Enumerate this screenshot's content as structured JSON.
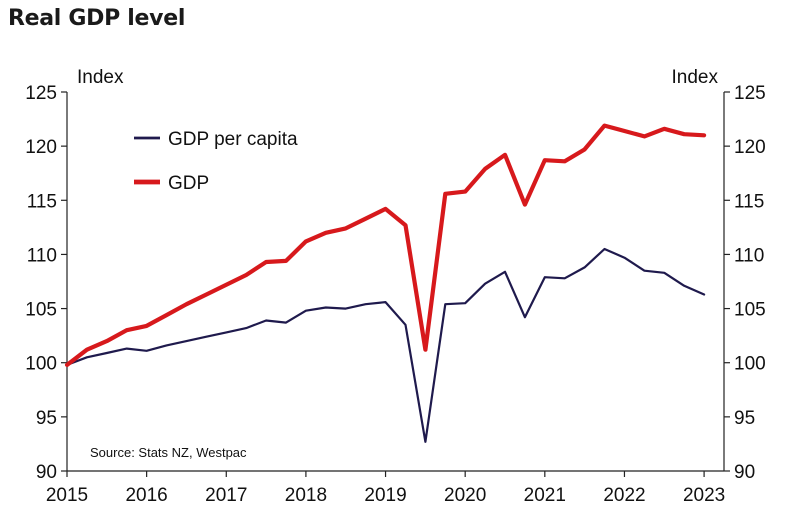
{
  "chart_data": {
    "type": "line",
    "title": "Real GDP level",
    "ylabel_left": "Index",
    "ylabel_right": "Index",
    "ylim": [
      90,
      125
    ],
    "yticks": [
      125,
      120,
      115,
      110,
      105,
      100,
      95,
      90
    ],
    "year_labels": [
      "2015",
      "2016",
      "2017",
      "2018",
      "2019",
      "2020",
      "2021",
      "2022",
      "2023"
    ],
    "xlim": [
      2015.0,
      2023.25
    ],
    "source": "Source: Stats NZ, Westpac",
    "grid": false,
    "legend_position": "top-left",
    "x": [
      2015.0,
      2015.25,
      2015.5,
      2015.75,
      2016.0,
      2016.25,
      2016.5,
      2016.75,
      2017.0,
      2017.25,
      2017.5,
      2017.75,
      2018.0,
      2018.25,
      2018.5,
      2018.75,
      2019.0,
      2019.25,
      2019.5,
      2019.75,
      2020.0,
      2020.25,
      2020.5,
      2020.75,
      2021.0,
      2021.25,
      2021.5,
      2021.75,
      2022.0,
      2022.25,
      2022.5,
      2022.75,
      2023.0
    ],
    "series": [
      {
        "name": "GDP per capita",
        "color": "#1f1a4d",
        "values": [
          99.8,
          100.5,
          100.9,
          101.3,
          101.1,
          101.6,
          102.0,
          102.4,
          102.8,
          103.2,
          103.9,
          103.7,
          104.8,
          105.1,
          105.0,
          105.4,
          105.6,
          103.5,
          92.7,
          105.4,
          105.5,
          107.3,
          108.4,
          104.2,
          107.9,
          107.8,
          108.8,
          110.5,
          109.7,
          108.5,
          108.3,
          107.1,
          106.3
        ]
      },
      {
        "name": "GDP",
        "color": "#d7191c",
        "values": [
          99.8,
          101.2,
          102.0,
          103.0,
          103.4,
          104.4,
          105.4,
          106.3,
          107.2,
          108.1,
          109.3,
          109.4,
          111.2,
          112.0,
          112.4,
          113.3,
          114.2,
          112.7,
          101.2,
          115.6,
          115.8,
          117.9,
          119.2,
          114.6,
          118.7,
          118.6,
          119.7,
          121.9,
          121.4,
          120.9,
          121.6,
          121.1,
          121.0
        ]
      }
    ]
  }
}
